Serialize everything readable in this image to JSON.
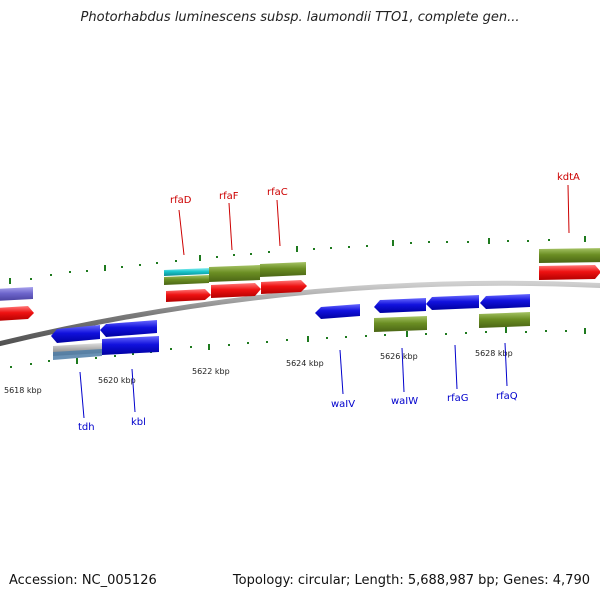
{
  "title": "Photorhabdus luminescens subsp. laumondii TTO1, complete gen...",
  "footer": {
    "accession": "Accession: NC_005126",
    "topology": "Topology: circular; Length: 5,688,987 bp; Genes: 4,790"
  },
  "scale_labels": [
    "5618 kbp",
    "5620 kbp",
    "5622 kbp",
    "5624 kbp",
    "5626 kbp",
    "5628 kbp"
  ],
  "gene_labels_top": [
    "rfaD",
    "rfaF",
    "rfaC",
    "kdtA"
  ],
  "gene_labels_bottom": [
    "tdh",
    "kbl",
    "waIV",
    "waIW",
    "rfaG",
    "rfaQ"
  ],
  "colors": {
    "label_top": "#cc0000",
    "label_bottom": "#0000cc",
    "backbone": "#7a7a7a",
    "tick": "#1e7a1e",
    "red_cds": "#ee1111",
    "blue_cds": "#1111dd",
    "olive_cds": "#6b8e23",
    "cyan_cds": "#19c6cc",
    "purple_cds": "#6e66cc",
    "gray_cds": "#a8a8a8"
  }
}
